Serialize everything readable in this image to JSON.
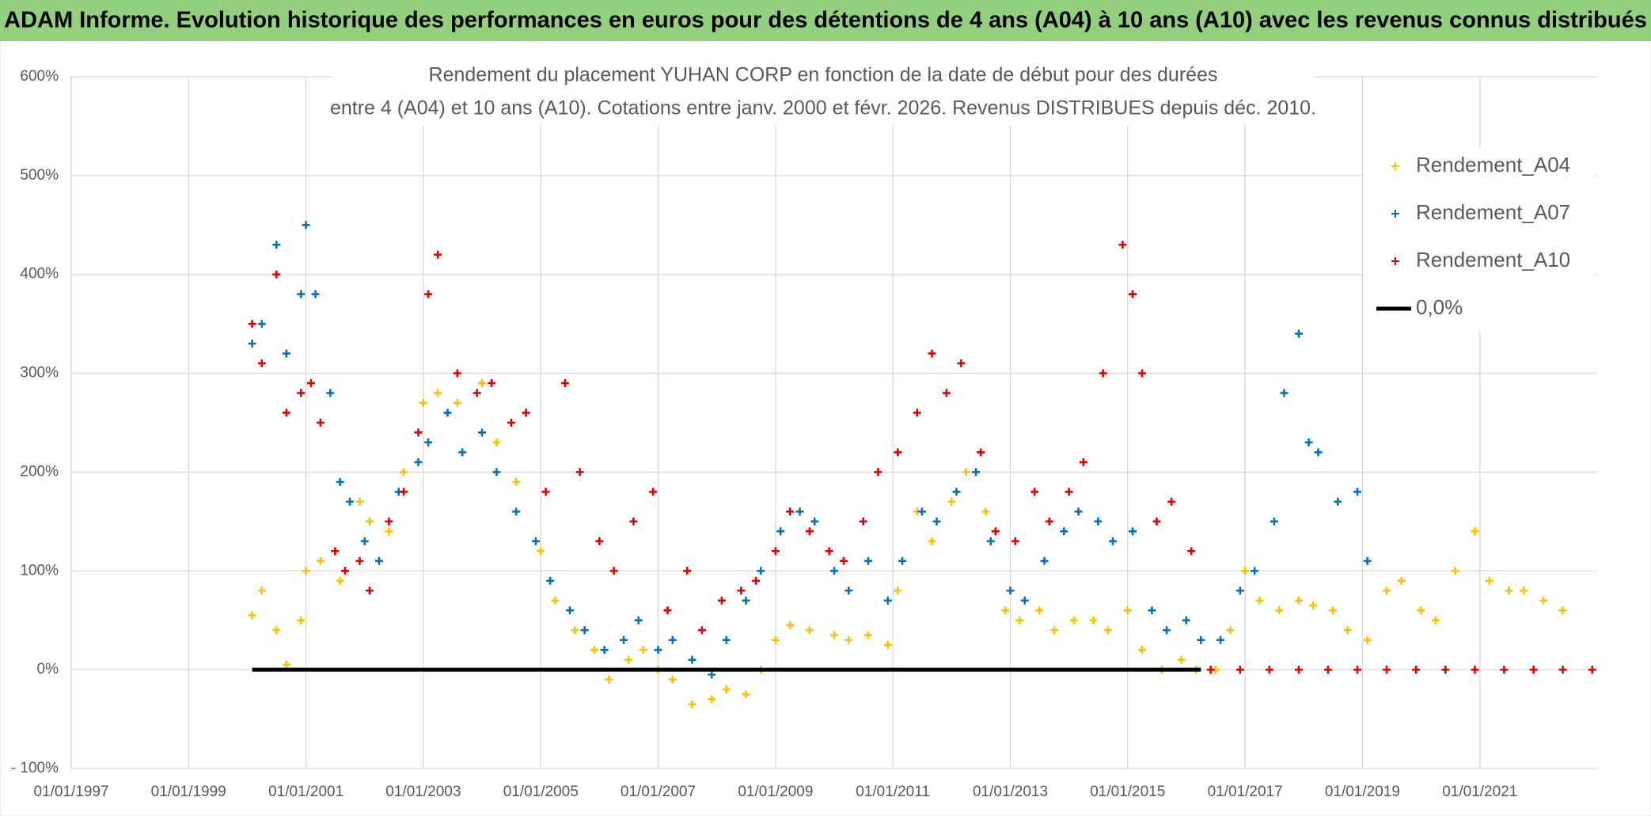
{
  "chart_data": {
    "type": "scatter",
    "header": "ADAM Informe. Evolution historique des performances en euros pour des détentions de 4 ans (A04) à 10 ans (A10) avec les revenus connus distribués",
    "title": [
      "Rendement du placement YUHAN CORP en fonction de la date de début pour des durées",
      "entre 4 (A04) et 10 ans (A10). Cotations entre janv. 2000 et févr. 2026. Revenus DISTRIBUES depuis déc. 2010."
    ],
    "xlim": [
      "1997-01-01",
      "2023-01-01"
    ],
    "xticks": [
      {
        "value": "1997-01-01",
        "label": "01/01/1997"
      },
      {
        "value": "1999-01-01",
        "label": "01/01/1999"
      },
      {
        "value": "2001-01-01",
        "label": "01/01/2001"
      },
      {
        "value": "2003-01-01",
        "label": "01/01/2003"
      },
      {
        "value": "2005-01-01",
        "label": "01/01/2005"
      },
      {
        "value": "2007-01-01",
        "label": "01/01/2007"
      },
      {
        "value": "2009-01-01",
        "label": "01/01/2009"
      },
      {
        "value": "2011-01-01",
        "label": "01/01/2011"
      },
      {
        "value": "2013-01-01",
        "label": "01/01/2013"
      },
      {
        "value": "2015-01-01",
        "label": "01/01/2015"
      },
      {
        "value": "2017-01-01",
        "label": "01/01/2017"
      },
      {
        "value": "2019-01-01",
        "label": "01/01/2019"
      },
      {
        "value": "2021-01-01",
        "label": "01/01/2021"
      }
    ],
    "ylim": [
      -100,
      600
    ],
    "yticks": [
      {
        "value": -100,
        "label": "- 100%"
      },
      {
        "value": 0,
        "label": "0%"
      },
      {
        "value": 100,
        "label": "100%"
      },
      {
        "value": 200,
        "label": "200%"
      },
      {
        "value": 300,
        "label": "300%"
      },
      {
        "value": 400,
        "label": "400%"
      },
      {
        "value": 500,
        "label": "500%"
      },
      {
        "value": 600,
        "label": "600%"
      }
    ],
    "grid": true,
    "legend": "top-right",
    "series": [
      {
        "name": "Rendement_A04",
        "color": "#ffc000",
        "style": "marker",
        "x": [
          "2000-02-01",
          "2000-04-01",
          "2000-07-01",
          "2000-09-01",
          "2000-12-01",
          "2001-01-01",
          "2001-04-01",
          "2001-08-01",
          "2001-12-01",
          "2002-02-01",
          "2002-06-01",
          "2002-09-01",
          "2003-01-01",
          "2003-04-01",
          "2003-08-01",
          "2004-01-01",
          "2004-04-01",
          "2004-08-01",
          "2005-01-01",
          "2005-04-01",
          "2005-08-01",
          "2005-12-01",
          "2006-03-01",
          "2006-07-01",
          "2006-10-01",
          "2007-01-01",
          "2007-04-01",
          "2007-08-01",
          "2007-12-01",
          "2008-03-01",
          "2008-07-01",
          "2008-10-01",
          "2009-01-01",
          "2009-04-01",
          "2009-08-01",
          "2010-01-01",
          "2010-04-01",
          "2010-08-01",
          "2010-12-01",
          "2011-02-01",
          "2011-06-01",
          "2011-09-01",
          "2012-01-01",
          "2012-04-01",
          "2012-08-01",
          "2012-12-01",
          "2013-03-01",
          "2013-07-01",
          "2013-10-01",
          "2014-02-01",
          "2014-06-01",
          "2014-09-01",
          "2015-01-01",
          "2015-04-01",
          "2015-08-01",
          "2015-12-01",
          "2016-03-01",
          "2016-07-01",
          "2016-10-01",
          "2017-01-01",
          "2017-04-01",
          "2017-08-01",
          "2017-12-01",
          "2018-03-01",
          "2018-07-01",
          "2018-10-01",
          "2019-02-01",
          "2019-06-01",
          "2019-09-01",
          "2020-01-01",
          "2020-04-01",
          "2020-08-01",
          "2020-12-01",
          "2021-03-01",
          "2021-07-01",
          "2021-10-01",
          "2022-02-01",
          "2022-06-01"
        ],
        "values": [
          55,
          80,
          40,
          5,
          50,
          100,
          110,
          90,
          170,
          150,
          140,
          200,
          270,
          280,
          270,
          290,
          230,
          190,
          120,
          70,
          40,
          20,
          -10,
          10,
          20,
          0,
          -10,
          -35,
          -30,
          -20,
          -25,
          0,
          30,
          45,
          40,
          35,
          30,
          35,
          25,
          80,
          160,
          130,
          170,
          200,
          160,
          60,
          50,
          60,
          40,
          50,
          50,
          40,
          60,
          20,
          0,
          10,
          0,
          0,
          40,
          100,
          70,
          60,
          70,
          65,
          60,
          40,
          30,
          80,
          90,
          60,
          50,
          100,
          140,
          90,
          80,
          80,
          70,
          60
        ]
      },
      {
        "name": "Rendement_A07",
        "color": "#0070c0",
        "style": "marker",
        "x": [
          "2000-02-01",
          "2000-04-01",
          "2000-07-01",
          "2000-09-01",
          "2000-12-01",
          "2001-01-01",
          "2001-03-01",
          "2001-06-01",
          "2001-08-01",
          "2001-10-01",
          "2002-01-01",
          "2002-04-01",
          "2002-08-01",
          "2002-12-01",
          "2003-02-01",
          "2003-06-01",
          "2003-09-01",
          "2004-01-01",
          "2004-04-01",
          "2004-08-01",
          "2004-12-01",
          "2005-03-01",
          "2005-07-01",
          "2005-10-01",
          "2006-02-01",
          "2006-06-01",
          "2006-09-01",
          "2007-01-01",
          "2007-04-01",
          "2007-08-01",
          "2007-12-01",
          "2008-03-01",
          "2008-07-01",
          "2008-10-01",
          "2009-02-01",
          "2009-06-01",
          "2009-09-01",
          "2010-01-01",
          "2010-04-01",
          "2010-08-01",
          "2010-12-01",
          "2011-03-01",
          "2011-07-01",
          "2011-10-01",
          "2012-02-01",
          "2012-06-01",
          "2012-09-01",
          "2013-01-01",
          "2013-04-01",
          "2013-08-01",
          "2013-12-01",
          "2014-03-01",
          "2014-07-01",
          "2014-10-01",
          "2015-02-01",
          "2015-06-01",
          "2015-09-01",
          "2016-01-01",
          "2016-04-01",
          "2016-08-01",
          "2016-12-01",
          "2017-03-01",
          "2017-07-01",
          "2017-09-01",
          "2017-12-01",
          "2018-02-01",
          "2018-04-01",
          "2018-08-01",
          "2018-12-01",
          "2019-02-01"
        ],
        "values": [
          330,
          350,
          430,
          320,
          380,
          450,
          380,
          280,
          190,
          170,
          130,
          110,
          180,
          210,
          230,
          260,
          220,
          240,
          200,
          160,
          130,
          90,
          60,
          40,
          20,
          30,
          50,
          20,
          30,
          10,
          -5,
          30,
          70,
          100,
          140,
          160,
          150,
          100,
          80,
          110,
          70,
          110,
          160,
          150,
          180,
          200,
          130,
          80,
          70,
          110,
          140,
          160,
          150,
          130,
          140,
          60,
          40,
          50,
          30,
          30,
          80,
          100,
          150,
          280,
          340,
          230,
          220,
          170,
          180,
          110
        ]
      },
      {
        "name": "Rendement_A10",
        "color": "#e00000",
        "style": "marker",
        "x": [
          "2000-02-01",
          "2000-04-01",
          "2000-07-01",
          "2000-09-01",
          "2000-12-01",
          "2001-02-01",
          "2001-04-01",
          "2001-07-01",
          "2001-09-01",
          "2001-12-01",
          "2002-02-01",
          "2002-06-01",
          "2002-09-01",
          "2002-12-01",
          "2003-02-01",
          "2003-04-01",
          "2003-08-01",
          "2003-12-01",
          "2004-03-01",
          "2004-07-01",
          "2004-10-01",
          "2005-02-01",
          "2005-06-01",
          "2005-09-01",
          "2006-01-01",
          "2006-04-01",
          "2006-08-01",
          "2006-12-01",
          "2007-03-01",
          "2007-07-01",
          "2007-10-01",
          "2008-02-01",
          "2008-06-01",
          "2008-09-01",
          "2009-01-01",
          "2009-04-01",
          "2009-08-01",
          "2009-12-01",
          "2010-03-01",
          "2010-07-01",
          "2010-10-01",
          "2011-02-01",
          "2011-06-01",
          "2011-09-01",
          "2011-12-01",
          "2012-03-01",
          "2012-07-01",
          "2012-10-01",
          "2013-02-01",
          "2013-06-01",
          "2013-09-01",
          "2014-01-01",
          "2014-04-01",
          "2014-08-01",
          "2014-12-01",
          "2015-02-01",
          "2015-04-01",
          "2015-07-01",
          "2015-10-01",
          "2016-02-01",
          "2016-06-01",
          "2016-12-01",
          "2017-06-01",
          "2017-12-01",
          "2018-06-01",
          "2018-12-01",
          "2019-06-01",
          "2019-12-01",
          "2020-06-01",
          "2020-12-01",
          "2021-06-01",
          "2021-12-01",
          "2022-06-01",
          "2022-12-01"
        ],
        "values": [
          350,
          310,
          400,
          260,
          280,
          290,
          250,
          120,
          100,
          110,
          80,
          150,
          180,
          240,
          380,
          420,
          300,
          280,
          290,
          250,
          260,
          180,
          290,
          200,
          130,
          100,
          150,
          180,
          60,
          100,
          40,
          70,
          80,
          90,
          120,
          160,
          140,
          120,
          110,
          150,
          200,
          220,
          260,
          320,
          280,
          310,
          220,
          140,
          130,
          180,
          150,
          180,
          210,
          300,
          430,
          380,
          300,
          150,
          170,
          120,
          0,
          0,
          0,
          0,
          0,
          0,
          0,
          0,
          0,
          0,
          0,
          0,
          0,
          0
        ]
      },
      {
        "name": "0,0%",
        "color": "#000000",
        "style": "line",
        "x": [
          "2000-02-01",
          "2016-04-01"
        ],
        "values": [
          0,
          0
        ]
      }
    ]
  }
}
